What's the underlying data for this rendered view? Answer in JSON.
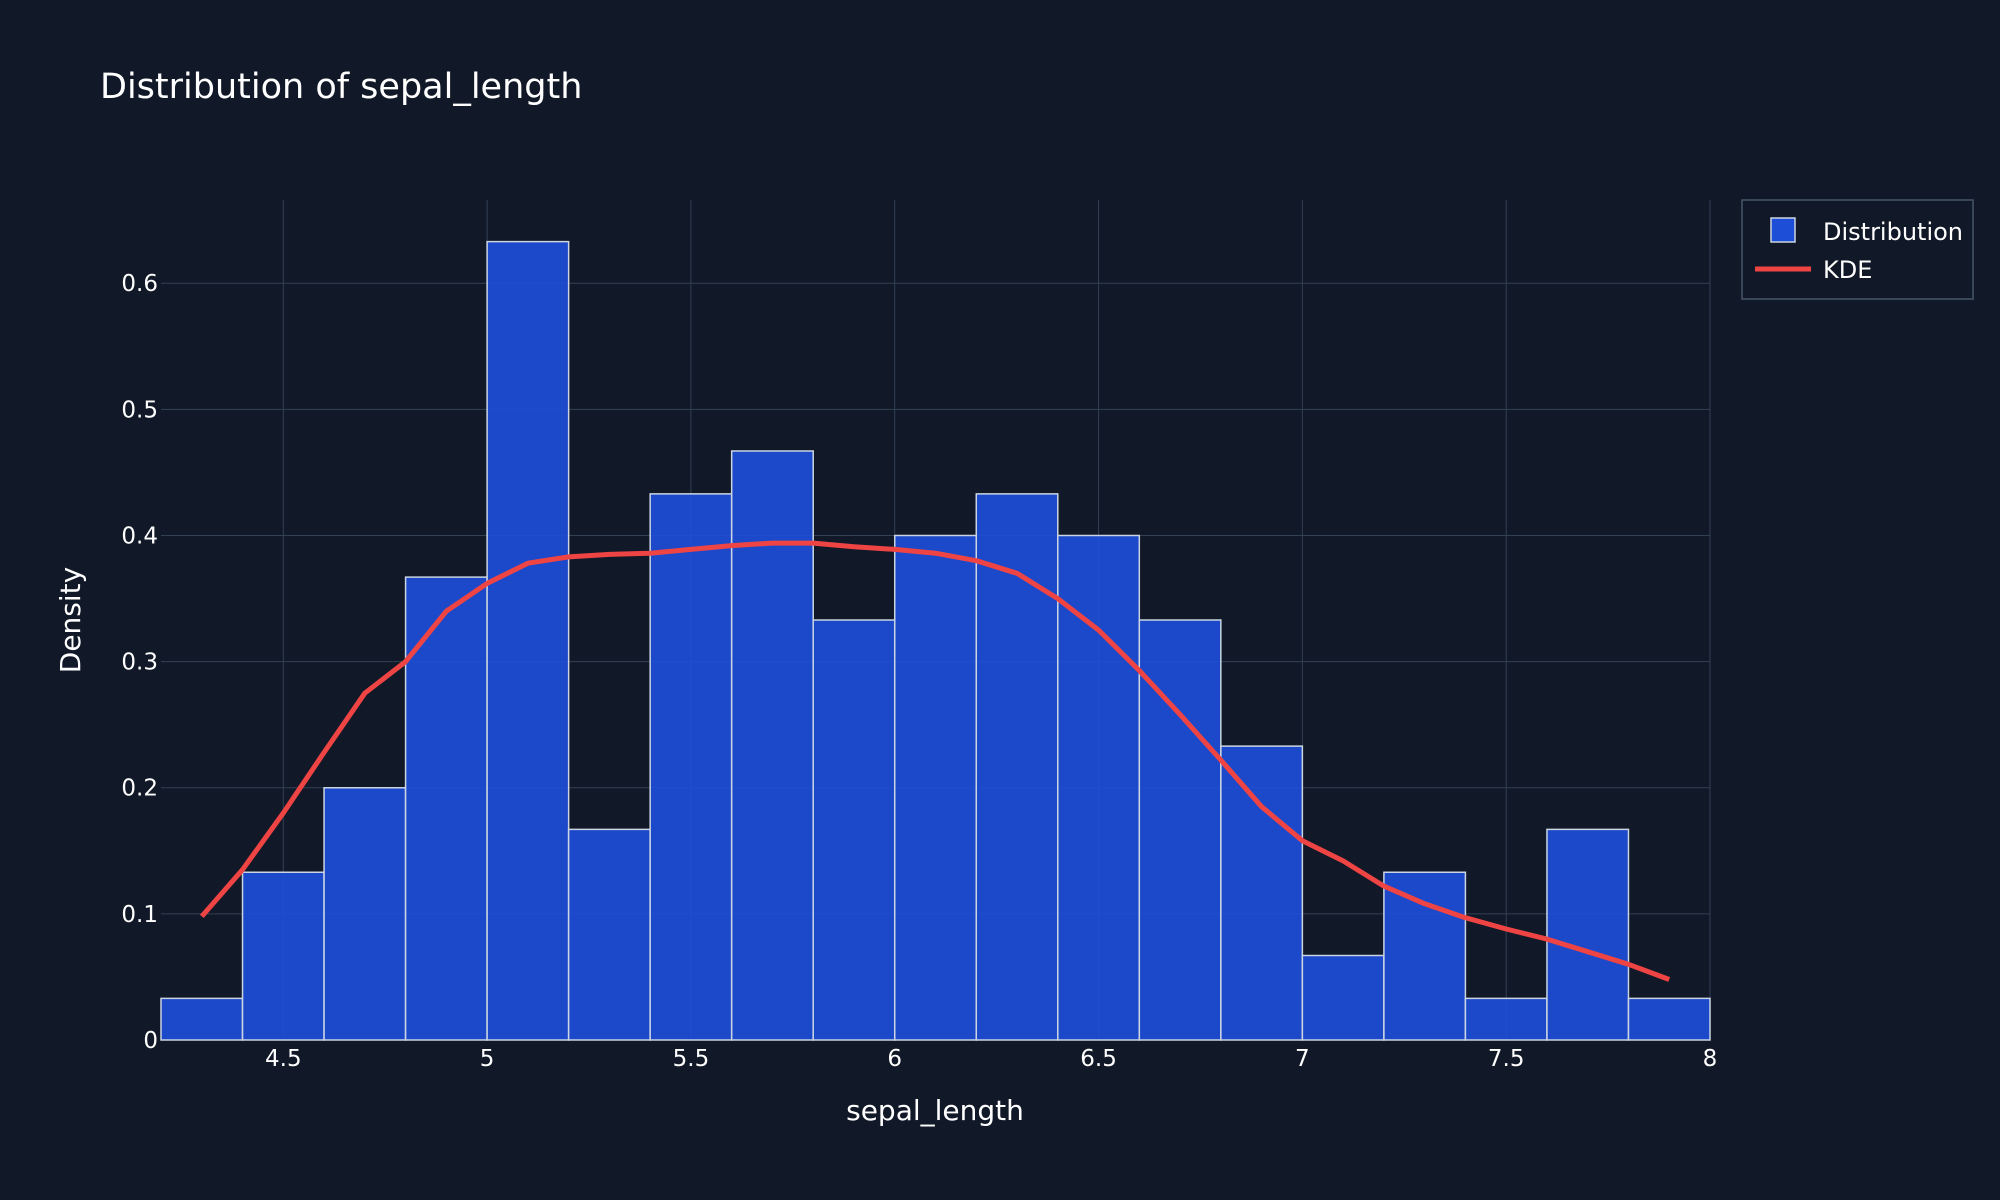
{
  "colors": {
    "background": "#111827",
    "bar_fill": "#1d4ed8",
    "bar_stroke": "#cbd5e1",
    "kde_line": "#ef4444",
    "grid": "#334155",
    "text": "#ffffff"
  },
  "chart_data": {
    "type": "bar",
    "title": "Distribution of sepal_length",
    "xlabel": "sepal_length",
    "ylabel": "Density",
    "xlim": [
      4.2,
      8.0
    ],
    "ylim": [
      0,
      0.666
    ],
    "grid": true,
    "legend_placement": "top-right",
    "x_ticks": [
      4.5,
      5,
      5.5,
      6,
      6.5,
      7,
      7.5,
      8
    ],
    "x_tick_labels": [
      "4.5",
      "5",
      "5.5",
      "6",
      "6.5",
      "7",
      "7.5",
      "8"
    ],
    "y_ticks": [
      0,
      0.1,
      0.2,
      0.3,
      0.4,
      0.5,
      0.6
    ],
    "y_tick_labels": [
      "0",
      "0.1",
      "0.2",
      "0.3",
      "0.4",
      "0.5",
      "0.6"
    ],
    "series": [
      {
        "name": "Distribution",
        "type": "histogram",
        "bin_edges": [
          4.2,
          4.4,
          4.6,
          4.8,
          5.0,
          5.2,
          5.4,
          5.6,
          5.8,
          6.0,
          6.2,
          6.4,
          6.6,
          6.8,
          7.0,
          7.2,
          7.4,
          7.6,
          7.8,
          8.0
        ],
        "values": [
          0.033,
          0.133,
          0.2,
          0.367,
          0.633,
          0.167,
          0.433,
          0.467,
          0.333,
          0.4,
          0.433,
          0.4,
          0.333,
          0.233,
          0.067,
          0.133,
          0.033,
          0.167,
          0.033
        ]
      },
      {
        "name": "KDE",
        "type": "line",
        "x": [
          4.3,
          4.4,
          4.5,
          4.6,
          4.7,
          4.8,
          4.9,
          5.0,
          5.1,
          5.2,
          5.3,
          5.4,
          5.5,
          5.6,
          5.7,
          5.8,
          5.9,
          6.0,
          6.1,
          6.2,
          6.3,
          6.4,
          6.5,
          6.6,
          6.7,
          6.8,
          6.9,
          7.0,
          7.1,
          7.2,
          7.3,
          7.4,
          7.5,
          7.6,
          7.7,
          7.8,
          7.9
        ],
        "y": [
          0.098,
          0.135,
          0.18,
          0.228,
          0.275,
          0.3,
          0.34,
          0.362,
          0.378,
          0.383,
          0.385,
          0.386,
          0.389,
          0.392,
          0.394,
          0.394,
          0.391,
          0.389,
          0.386,
          0.38,
          0.37,
          0.35,
          0.325,
          0.293,
          0.258,
          0.222,
          0.185,
          0.158,
          0.142,
          0.122,
          0.108,
          0.097,
          0.088,
          0.08,
          0.07,
          0.06,
          0.048
        ]
      }
    ]
  }
}
